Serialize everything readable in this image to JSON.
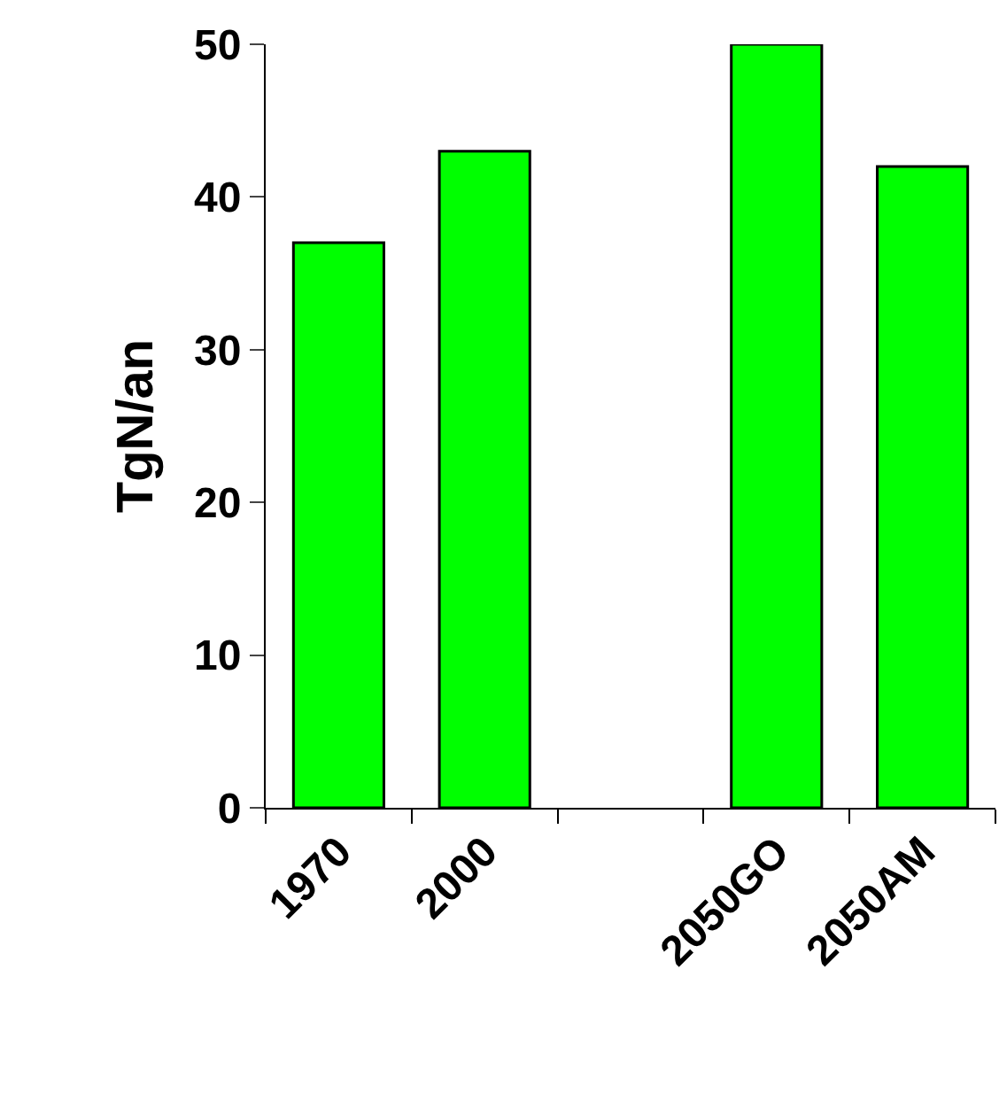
{
  "chart_data": {
    "type": "bar",
    "ylabel": "TgN/an",
    "categories": [
      "1970",
      "2000",
      null,
      "2050GO",
      "2050AM"
    ],
    "values": [
      37,
      43,
      null,
      50,
      42
    ],
    "color": "#00ff00",
    "ylim": [
      0,
      50
    ],
    "yticks": [
      0,
      10,
      20,
      30,
      40,
      50
    ],
    "legend": false
  }
}
